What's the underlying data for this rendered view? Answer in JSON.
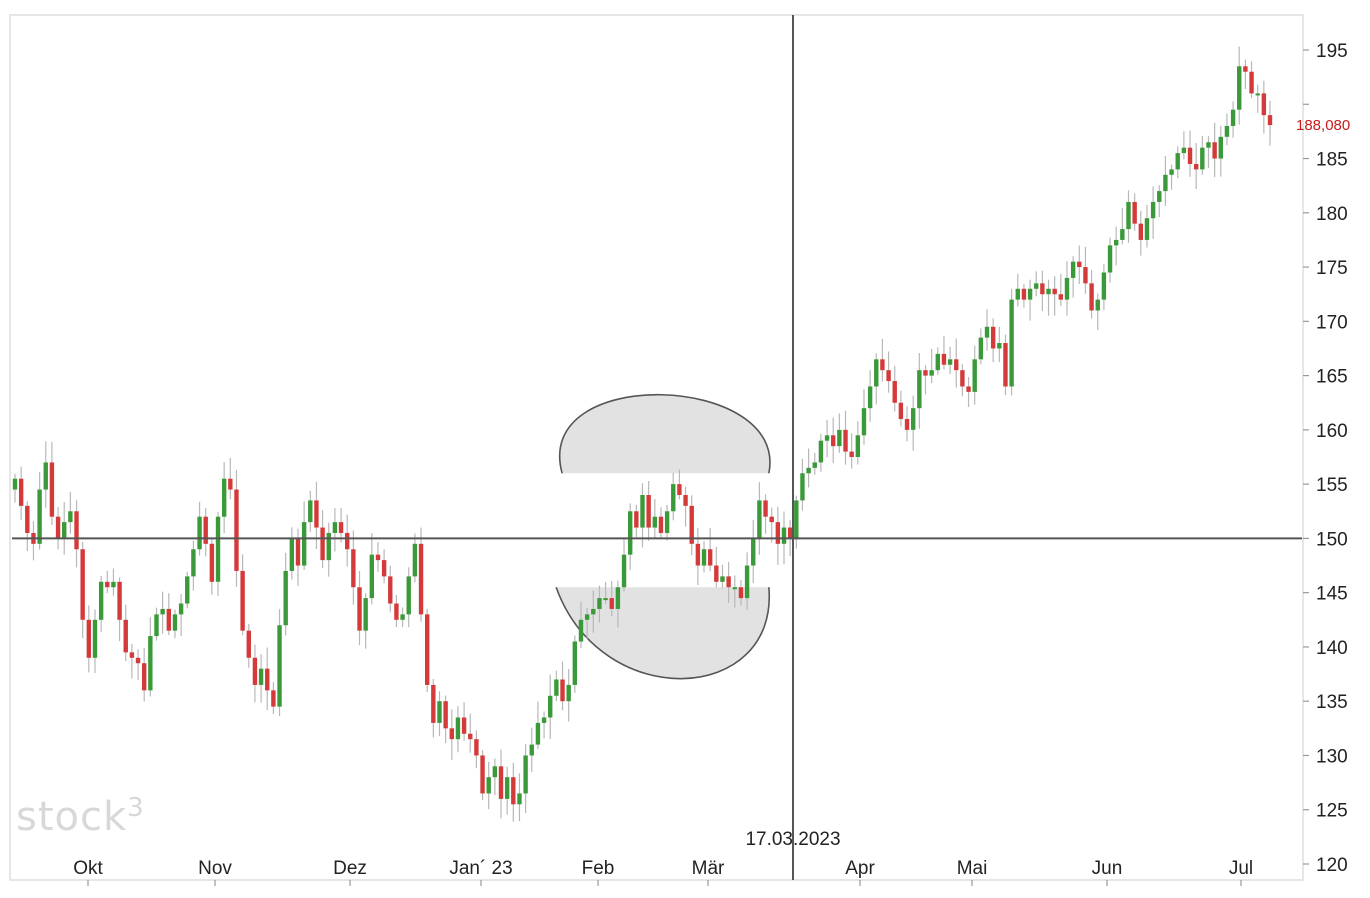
{
  "logo": {
    "text": "stock",
    "superscript": "3"
  },
  "chart_data": {
    "type": "candlestick",
    "ylim": [
      118,
      199
    ],
    "y_ticks": [
      195,
      190,
      185,
      180,
      175,
      170,
      165,
      160,
      155,
      150,
      145,
      140,
      135,
      130,
      125,
      120
    ],
    "y_tick_labels": [
      "195",
      "",
      "185",
      "180",
      "175",
      "170",
      "165",
      "160",
      "155",
      "150",
      "145",
      "140",
      "135",
      "130",
      "125",
      "120"
    ],
    "x_months": [
      {
        "label": "Okt",
        "day": 8
      },
      {
        "label": "Nov",
        "day": 39
      },
      {
        "label": "Dez",
        "day": 69
      },
      {
        "label": "Jan´ 23",
        "day": 100
      },
      {
        "label": "Feb",
        "day": 131
      },
      {
        "label": "Mär",
        "day": 159
      },
      {
        "label": "Apr",
        "day": 190
      },
      {
        "label": "Mai",
        "day": 220
      },
      {
        "label": "Jun",
        "day": 251
      },
      {
        "label": "Jul",
        "day": 281
      }
    ],
    "x_range": [
      0,
      293
    ],
    "crosshair": {
      "date": "17.03.2023",
      "day": 176,
      "price": 150
    },
    "last_price": {
      "label": "188,080",
      "value": 188.08
    },
    "colors": {
      "up": "#3a9a3a",
      "down": "#d43a3a",
      "wick": "#b8b8b8",
      "crosshair": "#555555",
      "price": "#cc1a1a",
      "highlight": "#e2e2e2"
    },
    "closes": [
      [
        0,
        155.5
      ],
      [
        1,
        153.0
      ],
      [
        2,
        150.5
      ],
      [
        3,
        149.5
      ],
      [
        4,
        154.5
      ],
      [
        5,
        157.0
      ],
      [
        6,
        152.0
      ],
      [
        7,
        150.0
      ],
      [
        8,
        151.5
      ],
      [
        9,
        152.5
      ],
      [
        10,
        149.0
      ],
      [
        11,
        142.5
      ],
      [
        12,
        139.0
      ],
      [
        13,
        142.5
      ],
      [
        14,
        146.0
      ],
      [
        15,
        145.5
      ],
      [
        16,
        146.0
      ],
      [
        17,
        142.5
      ],
      [
        18,
        139.5
      ],
      [
        19,
        139.0
      ],
      [
        20,
        138.5
      ],
      [
        21,
        136.0
      ],
      [
        22,
        141.0
      ],
      [
        23,
        143.0
      ],
      [
        24,
        143.5
      ],
      [
        25,
        141.5
      ],
      [
        26,
        143.0
      ],
      [
        27,
        144.0
      ],
      [
        28,
        146.5
      ],
      [
        29,
        149.0
      ],
      [
        30,
        152.0
      ],
      [
        31,
        149.5
      ],
      [
        32,
        146.0
      ],
      [
        33,
        152.0
      ],
      [
        34,
        155.5
      ],
      [
        35,
        154.5
      ],
      [
        36,
        147.0
      ],
      [
        37,
        141.5
      ],
      [
        38,
        139.0
      ],
      [
        39,
        136.5
      ],
      [
        40,
        138.0
      ],
      [
        41,
        136.0
      ],
      [
        42,
        134.5
      ],
      [
        43,
        142.0
      ],
      [
        44,
        147.0
      ],
      [
        45,
        150.0
      ],
      [
        46,
        147.5
      ],
      [
        47,
        151.5
      ],
      [
        48,
        153.5
      ],
      [
        49,
        151.0
      ],
      [
        50,
        148.0
      ],
      [
        51,
        150.5
      ],
      [
        52,
        151.5
      ],
      [
        53,
        150.5
      ],
      [
        54,
        149.0
      ],
      [
        55,
        145.5
      ],
      [
        56,
        141.5
      ],
      [
        57,
        144.5
      ],
      [
        58,
        148.5
      ],
      [
        59,
        148.0
      ],
      [
        60,
        146.5
      ],
      [
        61,
        144.0
      ],
      [
        62,
        142.5
      ],
      [
        63,
        143.0
      ],
      [
        64,
        146.5
      ],
      [
        65,
        149.5
      ],
      [
        66,
        143.0
      ],
      [
        67,
        136.5
      ],
      [
        68,
        133.0
      ],
      [
        69,
        135.0
      ],
      [
        70,
        132.5
      ],
      [
        71,
        131.5
      ],
      [
        72,
        133.5
      ],
      [
        73,
        132.0
      ],
      [
        74,
        131.5
      ],
      [
        75,
        130.0
      ],
      [
        76,
        126.5
      ],
      [
        77,
        128.0
      ],
      [
        78,
        129.0
      ],
      [
        79,
        126.0
      ],
      [
        80,
        128.0
      ],
      [
        81,
        125.5
      ],
      [
        82,
        126.5
      ],
      [
        83,
        130.0
      ],
      [
        84,
        131.0
      ],
      [
        85,
        133.0
      ],
      [
        86,
        133.5
      ],
      [
        87,
        135.5
      ],
      [
        88,
        137.0
      ],
      [
        89,
        135.0
      ],
      [
        90,
        136.5
      ],
      [
        91,
        140.5
      ],
      [
        92,
        142.5
      ],
      [
        93,
        143.0
      ],
      [
        94,
        143.5
      ],
      [
        95,
        144.5
      ],
      [
        96,
        144.5
      ],
      [
        97,
        143.5
      ],
      [
        98,
        145.5
      ],
      [
        99,
        148.5
      ],
      [
        100,
        152.5
      ],
      [
        101,
        151.0
      ],
      [
        102,
        154.0
      ],
      [
        103,
        151.0
      ],
      [
        104,
        152.0
      ],
      [
        105,
        150.5
      ],
      [
        106,
        152.5
      ],
      [
        107,
        155.0
      ],
      [
        108,
        154.0
      ],
      [
        109,
        153.0
      ],
      [
        110,
        149.5
      ],
      [
        111,
        147.5
      ],
      [
        112,
        149.0
      ],
      [
        113,
        147.5
      ],
      [
        114,
        146.0
      ],
      [
        115,
        146.5
      ],
      [
        116,
        145.5
      ],
      [
        117,
        145.5
      ],
      [
        118,
        144.5
      ],
      [
        119,
        147.5
      ],
      [
        120,
        150.0
      ],
      [
        121,
        153.5
      ],
      [
        122,
        152.0
      ],
      [
        123,
        151.5
      ],
      [
        124,
        149.5
      ],
      [
        125,
        151.0
      ],
      [
        126,
        150.0
      ],
      [
        127,
        153.5
      ],
      [
        128,
        156.0
      ],
      [
        129,
        156.5
      ],
      [
        130,
        157.0
      ],
      [
        131,
        159.0
      ],
      [
        132,
        159.5
      ],
      [
        133,
        158.5
      ],
      [
        134,
        160.0
      ],
      [
        135,
        158.0
      ],
      [
        136,
        157.5
      ],
      [
        137,
        159.5
      ],
      [
        138,
        162.0
      ],
      [
        139,
        164.0
      ],
      [
        140,
        166.5
      ],
      [
        141,
        165.5
      ],
      [
        142,
        164.5
      ],
      [
        143,
        162.5
      ],
      [
        144,
        161.0
      ],
      [
        145,
        160.0
      ],
      [
        146,
        162.0
      ],
      [
        147,
        165.5
      ],
      [
        148,
        165.0
      ],
      [
        149,
        165.5
      ],
      [
        150,
        167.0
      ],
      [
        151,
        166.0
      ],
      [
        152,
        166.5
      ],
      [
        153,
        165.5
      ],
      [
        154,
        164.0
      ],
      [
        155,
        163.5
      ],
      [
        156,
        166.5
      ],
      [
        157,
        168.5
      ],
      [
        158,
        169.5
      ],
      [
        159,
        167.5
      ],
      [
        160,
        168.0
      ],
      [
        161,
        164.0
      ],
      [
        162,
        172.0
      ],
      [
        163,
        173.0
      ],
      [
        164,
        172.0
      ],
      [
        165,
        173.0
      ],
      [
        166,
        173.5
      ],
      [
        167,
        172.5
      ],
      [
        168,
        173.0
      ],
      [
        169,
        172.5
      ],
      [
        170,
        172.0
      ],
      [
        171,
        174.0
      ],
      [
        172,
        175.5
      ],
      [
        173,
        175.0
      ],
      [
        174,
        173.5
      ],
      [
        175,
        171.0
      ],
      [
        176,
        172.0
      ],
      [
        177,
        174.5
      ],
      [
        178,
        177.0
      ],
      [
        179,
        177.5
      ],
      [
        180,
        178.5
      ],
      [
        181,
        181.0
      ],
      [
        182,
        179.0
      ],
      [
        183,
        177.5
      ],
      [
        184,
        179.5
      ],
      [
        185,
        181.0
      ],
      [
        186,
        182.0
      ],
      [
        187,
        183.5
      ],
      [
        188,
        184.0
      ],
      [
        189,
        185.5
      ],
      [
        190,
        186.0
      ],
      [
        191,
        184.5
      ],
      [
        192,
        184.0
      ],
      [
        193,
        186.0
      ],
      [
        194,
        186.5
      ],
      [
        195,
        185.0
      ],
      [
        196,
        187.0
      ],
      [
        197,
        188.0
      ],
      [
        198,
        189.5
      ],
      [
        199,
        193.5
      ],
      [
        200,
        193.0
      ],
      [
        201,
        191.0
      ],
      [
        202,
        191.0
      ],
      [
        203,
        189.0
      ],
      [
        204,
        188.08
      ]
    ]
  }
}
